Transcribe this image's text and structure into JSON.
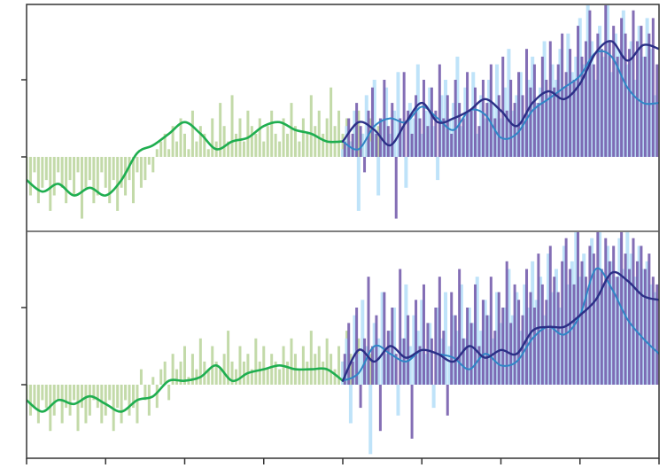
{
  "colors": {
    "observed_bars": "#b9d39a",
    "observed_line": "#1fae50",
    "model_a_bars": "#b8e0f8",
    "model_a_line": "#2f86c6",
    "model_b_bars": "#6f55a8",
    "model_b_line": "#2b2f86",
    "axis": "#333333",
    "divider": "#555555"
  },
  "chart_data": [
    {
      "type": "bar",
      "panel": "top",
      "title": "",
      "xlabel": "",
      "ylabel": "",
      "xlim": [
        0,
        8
      ],
      "ylim": [
        -1.0,
        2.0
      ],
      "grid": false,
      "legend": "none",
      "x_ticks": [
        0,
        1,
        2,
        3,
        4,
        5,
        6,
        7,
        8
      ],
      "y_ticks": [
        0,
        1
      ],
      "series": [
        {
          "kind": "bars",
          "x_start": 0.0,
          "x_step": 0.05,
          "values": [
            -0.3,
            -0.5,
            -0.2,
            -0.6,
            -0.4,
            -0.3,
            -0.7,
            -0.5,
            -0.2,
            -0.4,
            -0.6,
            -0.3,
            -0.5,
            -0.2,
            -0.8,
            -0.4,
            -0.3,
            -0.6,
            -0.5,
            -0.2,
            -0.4,
            -0.6,
            -0.3,
            -0.7,
            -0.4,
            -0.5,
            -0.3,
            -0.6,
            -0.2,
            -0.4,
            -0.3,
            -0.1,
            -0.2,
            0.1,
            0.2,
            0.3,
            0.1,
            0.4,
            0.2,
            0.5,
            0.3,
            0.1,
            0.6,
            0.2,
            0.4,
            0.3,
            0.1,
            0.5,
            0.2,
            0.7,
            0.4,
            0.2,
            0.8,
            0.3,
            0.5,
            0.2,
            0.6,
            0.4,
            0.3,
            0.5,
            0.2,
            0.4,
            0.6,
            0.3,
            0.2,
            0.5,
            0.3,
            0.7,
            0.4,
            0.2,
            0.5,
            0.3,
            0.8,
            0.4,
            0.6,
            0.3,
            0.5,
            0.9,
            0.4,
            0.6,
            0.3,
            0.5,
            0.2,
            0.4,
            0.6,
            0.3,
            0.2,
            0.5,
            0.3,
            0.4
          ]
        },
        {
          "kind": "line",
          "x": [
            0,
            0.2,
            0.4,
            0.6,
            0.8,
            1.0,
            1.2,
            1.4,
            1.6,
            1.8,
            2.0,
            2.2,
            2.4,
            2.6,
            2.8,
            3.0,
            3.2,
            3.4,
            3.6,
            3.8,
            4.0
          ],
          "values": [
            -0.3,
            -0.45,
            -0.35,
            -0.5,
            -0.4,
            -0.5,
            -0.3,
            0.05,
            0.15,
            0.3,
            0.45,
            0.3,
            0.1,
            0.2,
            0.25,
            0.4,
            0.45,
            0.35,
            0.3,
            0.2,
            0.2
          ]
        },
        {
          "kind": "bars",
          "x_start": 4.0,
          "x_step": 0.05,
          "values": [
            0.1,
            0.4,
            0.2,
            0.6,
            -0.7,
            0.3,
            0.8,
            0.2,
            1.0,
            -0.5,
            0.5,
            0.9,
            0.3,
            0.6,
            1.1,
            0.4,
            -0.4,
            0.7,
            0.5,
            1.2,
            0.3,
            0.6,
            0.9,
            0.4,
            -0.3,
            0.8,
            1.0,
            0.5,
            0.7,
            1.3,
            0.4,
            0.9,
            0.6,
            1.1,
            0.3,
            0.8,
            0.5,
            1.0,
            0.7,
            1.2,
            0.5,
            0.9,
            1.4,
            0.6,
            0.8,
            1.1,
            0.5,
            1.0,
            1.3,
            0.7,
            0.9,
            1.5,
            0.8,
            1.2,
            1.0,
            1.4,
            0.9,
            1.6,
            1.1,
            1.3,
            1.8,
            1.2,
            2.0,
            1.5,
            1.0,
            1.7,
            1.3,
            2.0,
            1.1,
            1.6,
            1.4,
            1.9,
            1.2,
            1.5,
            1.0,
            1.7,
            1.3,
            1.8,
            1.4,
            0.8
          ]
        },
        {
          "kind": "bars",
          "x_start": 4.025,
          "x_step": 0.05,
          "values": [
            0.2,
            0.5,
            0.3,
            0.7,
            0.4,
            -0.2,
            0.6,
            0.9,
            0.3,
            0.5,
            1.0,
            0.4,
            0.7,
            -0.8,
            0.5,
            1.1,
            0.6,
            0.3,
            0.8,
            0.5,
            1.0,
            0.4,
            0.9,
            0.6,
            1.2,
            0.5,
            0.8,
            0.3,
            1.0,
            0.7,
            0.5,
            1.1,
            0.6,
            0.9,
            0.4,
            1.0,
            0.7,
            1.2,
            0.5,
            0.8,
            1.3,
            0.6,
            1.0,
            0.7,
            1.1,
            0.8,
            1.4,
            0.9,
            1.2,
            0.7,
            1.3,
            1.0,
            1.5,
            0.9,
            1.2,
            1.6,
            1.1,
            1.4,
            1.0,
            1.7,
            1.3,
            1.5,
            1.9,
            1.2,
            1.6,
            1.4,
            2.0,
            1.5,
            1.7,
            1.3,
            1.8,
            1.6,
            1.4,
            1.9,
            1.5,
            1.7,
            1.3,
            1.6,
            1.8,
            1.2
          ]
        },
        {
          "kind": "line",
          "x": [
            4.0,
            4.2,
            4.4,
            4.6,
            4.8,
            5.0,
            5.2,
            5.4,
            5.6,
            5.8,
            6.0,
            6.2,
            6.4,
            6.6,
            6.8,
            7.0,
            7.2,
            7.4,
            7.6,
            7.8,
            8.0
          ],
          "values": [
            0.2,
            0.1,
            0.4,
            0.5,
            0.45,
            0.65,
            0.5,
            0.35,
            0.6,
            0.55,
            0.25,
            0.3,
            0.6,
            0.75,
            0.9,
            1.05,
            1.35,
            1.3,
            0.9,
            0.7,
            0.7
          ]
        },
        {
          "kind": "line",
          "x": [
            4.0,
            4.2,
            4.4,
            4.6,
            4.8,
            5.0,
            5.2,
            5.4,
            5.6,
            5.8,
            6.0,
            6.2,
            6.4,
            6.6,
            6.8,
            7.0,
            7.2,
            7.4,
            7.6,
            7.8,
            8.0
          ],
          "values": [
            0.2,
            0.45,
            0.35,
            0.15,
            0.45,
            0.7,
            0.45,
            0.5,
            0.6,
            0.75,
            0.6,
            0.4,
            0.7,
            0.85,
            0.75,
            0.95,
            1.35,
            1.5,
            1.25,
            1.45,
            1.4
          ]
        }
      ]
    },
    {
      "type": "bar",
      "panel": "bottom",
      "title": "",
      "xlabel": "",
      "ylabel": "",
      "xlim": [
        0,
        8
      ],
      "ylim": [
        -1.0,
        2.0
      ],
      "grid": false,
      "legend": "none",
      "x_ticks": [
        0,
        1,
        2,
        3,
        4,
        5,
        6,
        7,
        8
      ],
      "y_ticks": [
        0,
        1
      ],
      "series": [
        {
          "kind": "bars",
          "x_start": 0.0,
          "x_step": 0.05,
          "values": [
            -0.2,
            -0.4,
            -0.3,
            -0.5,
            -0.2,
            -0.3,
            -0.6,
            -0.4,
            -0.2,
            -0.5,
            -0.3,
            -0.4,
            -0.2,
            -0.6,
            -0.3,
            -0.5,
            -0.4,
            -0.2,
            -0.3,
            -0.5,
            -0.4,
            -0.2,
            -0.6,
            -0.3,
            -0.5,
            -0.2,
            -0.4,
            -0.3,
            -0.5,
            0.2,
            -0.2,
            -0.4,
            0.1,
            -0.3,
            0.2,
            0.3,
            -0.2,
            0.4,
            0.2,
            0.3,
            0.5,
            0.1,
            0.4,
            0.2,
            0.6,
            0.3,
            0.2,
            0.5,
            0.3,
            0.2,
            0.4,
            0.7,
            0.3,
            0.2,
            0.5,
            0.3,
            0.4,
            0.2,
            0.6,
            0.3,
            0.5,
            0.2,
            0.4,
            0.3,
            0.2,
            0.5,
            0.3,
            0.6,
            0.4,
            0.2,
            0.5,
            0.3,
            0.7,
            0.4,
            0.5,
            0.3,
            0.6,
            0.4,
            0.2,
            0.5,
            0.3,
            0.7,
            0.4,
            0.2,
            0.6,
            0.3,
            0.5,
            0.4,
            0.2,
            0.3
          ]
        },
        {
          "kind": "line",
          "x": [
            0,
            0.2,
            0.4,
            0.6,
            0.8,
            1.0,
            1.2,
            1.4,
            1.6,
            1.8,
            2.0,
            2.2,
            2.4,
            2.6,
            2.8,
            3.0,
            3.2,
            3.4,
            3.6,
            3.8,
            4.0
          ],
          "values": [
            -0.2,
            -0.35,
            -0.2,
            -0.25,
            -0.15,
            -0.25,
            -0.35,
            -0.2,
            -0.15,
            0.05,
            0.05,
            0.1,
            0.25,
            0.05,
            0.15,
            0.2,
            0.25,
            0.2,
            0.2,
            0.2,
            0.05
          ]
        },
        {
          "kind": "bars",
          "x_start": 4.0,
          "x_step": 0.05,
          "values": [
            0.3,
            0.6,
            -0.5,
            0.9,
            0.4,
            1.1,
            0.5,
            -0.9,
            0.8,
            0.6,
            1.2,
            0.4,
            0.7,
            1.0,
            -0.4,
            0.6,
            1.3,
            0.5,
            0.9,
            0.7,
            1.1,
            0.4,
            0.8,
            -0.3,
            1.0,
            0.6,
            1.2,
            0.5,
            0.9,
            0.7,
            1.3,
            0.6,
            1.0,
            0.8,
            1.4,
            0.7,
            1.1,
            0.9,
            0.6,
            1.2,
            0.8,
            1.0,
            1.5,
            0.9,
            1.2,
            0.7,
            1.3,
            1.0,
            1.6,
            1.1,
            1.4,
            0.9,
            1.7,
            1.2,
            1.5,
            1.0,
            1.8,
            1.3,
            1.6,
            2.0,
            1.4,
            1.7,
            1.2,
            1.9,
            1.5,
            2.0,
            1.3,
            1.8,
            1.6,
            1.4,
            1.9,
            1.5,
            2.0,
            1.7,
            1.4,
            1.8,
            1.5,
            1.6,
            1.3,
            1.2
          ]
        },
        {
          "kind": "bars",
          "x_start": 4.025,
          "x_step": 0.05,
          "values": [
            0.4,
            0.8,
            0.3,
            1.0,
            -0.3,
            0.6,
            1.4,
            0.5,
            0.9,
            -0.6,
            1.2,
            0.7,
            1.0,
            0.4,
            1.5,
            0.6,
            0.9,
            -0.7,
            1.1,
            0.5,
            1.3,
            0.8,
            0.6,
            1.0,
            1.4,
            0.7,
            -0.4,
            1.2,
            0.9,
            1.5,
            0.6,
            1.0,
            0.8,
            1.3,
            0.5,
            1.1,
            0.9,
            1.4,
            0.7,
            1.2,
            1.0,
            1.6,
            0.8,
            1.3,
            1.1,
            0.9,
            1.5,
            1.2,
            1.0,
            1.7,
            1.3,
            1.1,
            1.8,
            1.4,
            1.2,
            1.6,
            1.9,
            1.5,
            1.3,
            2.0,
            1.6,
            1.4,
            1.8,
            1.7,
            2.0,
            1.5,
            1.9,
            1.6,
            1.8,
            1.4,
            2.0,
            1.7,
            1.5,
            1.9,
            1.6,
            1.8,
            1.5,
            1.7,
            1.4,
            1.3
          ]
        },
        {
          "kind": "line",
          "x": [
            4.0,
            4.2,
            4.4,
            4.6,
            4.8,
            5.0,
            5.2,
            5.4,
            5.6,
            5.8,
            6.0,
            6.2,
            6.4,
            6.6,
            6.8,
            7.0,
            7.2,
            7.4,
            7.6,
            7.8,
            8.0
          ],
          "values": [
            0.05,
            0.15,
            0.5,
            0.4,
            0.3,
            0.45,
            0.4,
            0.35,
            0.2,
            0.4,
            0.25,
            0.3,
            0.6,
            0.75,
            0.65,
            0.9,
            1.5,
            1.25,
            0.85,
            0.6,
            0.4
          ]
        },
        {
          "kind": "line",
          "x": [
            4.0,
            4.2,
            4.4,
            4.6,
            4.8,
            5.0,
            5.2,
            5.4,
            5.6,
            5.8,
            6.0,
            6.2,
            6.4,
            6.6,
            6.8,
            7.0,
            7.2,
            7.4,
            7.6,
            7.8,
            8.0
          ],
          "values": [
            0.05,
            0.45,
            0.3,
            0.5,
            0.35,
            0.45,
            0.4,
            0.3,
            0.5,
            0.35,
            0.45,
            0.4,
            0.7,
            0.75,
            0.75,
            0.9,
            1.1,
            1.45,
            1.35,
            1.15,
            1.1
          ]
        }
      ]
    }
  ]
}
